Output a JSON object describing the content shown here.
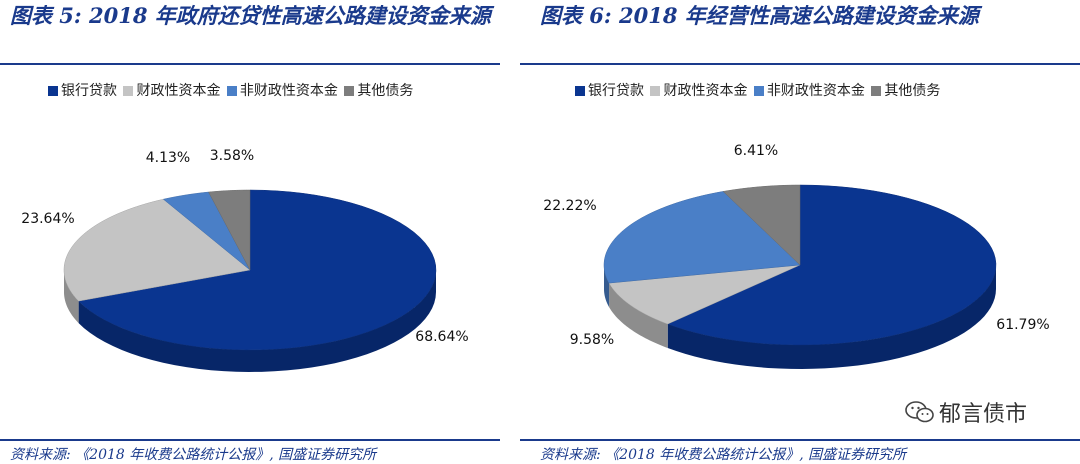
{
  "panels": [
    {
      "title": "图表 5:  2018 年政府还贷性高速公路建设资金来源",
      "source": "资料来源:  《2018 年收费公路统计公报》, 国盛证券研究所",
      "legend": [
        "银行贷款",
        "财政性资本金",
        "非财政性资本金",
        "其他债务"
      ],
      "labels": [
        "68.64%",
        "23.64%",
        "4.13%",
        "3.58%"
      ]
    },
    {
      "title": "图表 6:  2018 年经营性高速公路建设资金来源",
      "source": "资料来源:  《2018 年收费公路统计公报》, 国盛证券研究所",
      "legend": [
        "银行贷款",
        "财政性资本金",
        "非财政性资本金",
        "其他债务"
      ],
      "labels": [
        "61.79%",
        "9.58%",
        "22.22%",
        "6.41%"
      ]
    }
  ],
  "colors": [
    "#0a3590",
    "#c4c4c4",
    "#4a7fc7",
    "#7d7d7d"
  ],
  "watermark": "郁言债市",
  "chart_data": [
    {
      "type": "pie",
      "title": "图表 5:  2018 年政府还贷性高速公路建设资金来源",
      "categories": [
        "银行贷款",
        "财政性资本金",
        "非财政性资本金",
        "其他债务"
      ],
      "values": [
        68.64,
        23.64,
        4.13,
        3.58
      ],
      "legend_position": "top"
    },
    {
      "type": "pie",
      "title": "图表 6:  2018 年经营性高速公路建设资金来源",
      "categories": [
        "银行贷款",
        "财政性资本金",
        "非财政性资本金",
        "其他债务"
      ],
      "values": [
        61.79,
        9.58,
        22.22,
        6.41
      ],
      "legend_position": "top"
    }
  ]
}
